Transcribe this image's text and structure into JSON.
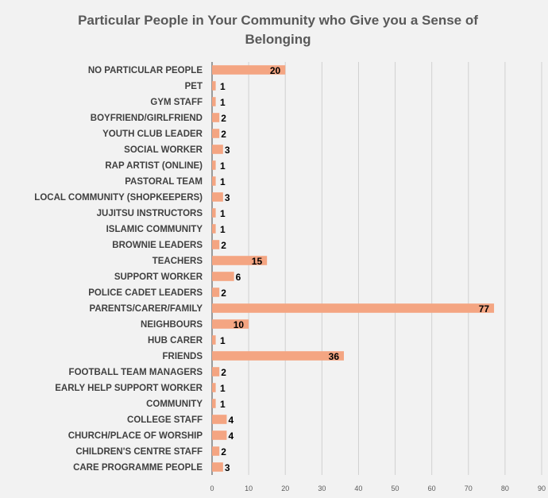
{
  "chart_data": {
    "type": "bar",
    "orientation": "horizontal",
    "title": "Particular People in Your Community who Give you a Sense of Belonging",
    "xlim": [
      0,
      90
    ],
    "x_ticks": [
      "0",
      "10",
      "20",
      "30",
      "40",
      "50",
      "60",
      "70",
      "80",
      "90"
    ],
    "grid": true,
    "bar_color": "#f4a582",
    "categories": [
      "NO PARTICULAR PEOPLE",
      "PET",
      "GYM STAFF",
      "BOYFRIEND/GIRLFRIEND",
      "YOUTH CLUB LEADER",
      "SOCIAL WORKER",
      "RAP ARTIST (ONLINE)",
      "PASTORAL TEAM",
      "LOCAL COMMUNITY (SHOPKEEPERS)",
      "JUJITSU INSTRUCTORS",
      "ISLAMIC COMMUNITY",
      "BROWNIE LEADERS",
      "TEACHERS",
      "SUPPORT WORKER",
      "POLICE CADET LEADERS",
      "PARENTS/CARER/FAMILY",
      "NEIGHBOURS",
      "HUB CARER",
      "FRIENDS",
      "FOOTBALL TEAM MANAGERS",
      "EARLY HELP SUPPORT WORKER",
      "COMMUNITY",
      "COLLEGE STAFF",
      "CHURCH/PLACE OF WORSHIP",
      "CHILDREN'S CENTRE STAFF",
      "CARE PROGRAMME PEOPLE"
    ],
    "values": [
      20,
      1,
      1,
      2,
      2,
      3,
      1,
      1,
      3,
      1,
      1,
      2,
      15,
      6,
      2,
      77,
      10,
      1,
      36,
      2,
      1,
      1,
      4,
      4,
      2,
      3
    ],
    "value_labels": [
      "20",
      "1",
      "1",
      "2",
      "2",
      "3",
      "1",
      "1",
      "3",
      "1",
      "1",
      "2",
      "15",
      "6",
      "2",
      "77",
      "10",
      "1",
      "36",
      "2",
      "1",
      "1",
      "4",
      "4",
      "2",
      "3"
    ]
  }
}
